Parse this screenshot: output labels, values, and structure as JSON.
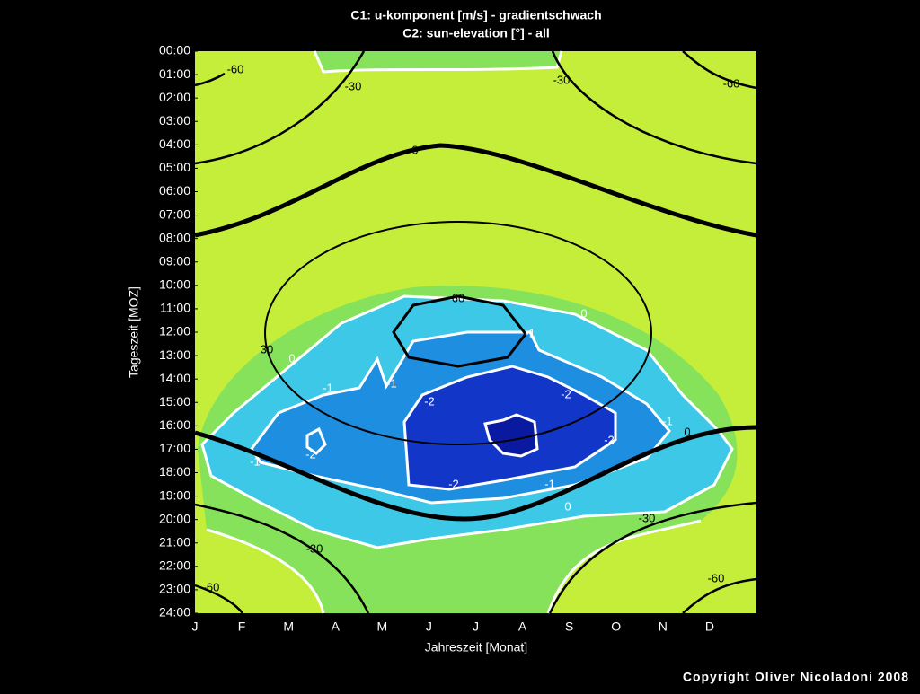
{
  "chart_data": {
    "type": "contour",
    "title": "C1: u-komponent [m/s] - gradientschwach",
    "subtitle": "C2: sun-elevation [°] - all",
    "xlabel": "Jahreszeit [Monat]",
    "ylabel": "Tageszeit [MOZ]",
    "categories": [
      "J",
      "F",
      "M",
      "A",
      "M",
      "J",
      "J",
      "A",
      "S",
      "O",
      "N",
      "D"
    ],
    "ylim": [
      0,
      24
    ],
    "yticks": [
      {
        "value": 0,
        "label": "00:00"
      },
      {
        "value": 1,
        "label": "01:00"
      },
      {
        "value": 2,
        "label": "02:00"
      },
      {
        "value": 3,
        "label": "03:00"
      },
      {
        "value": 4,
        "label": "04:00"
      },
      {
        "value": 5,
        "label": "05:00"
      },
      {
        "value": 6,
        "label": "06:00"
      },
      {
        "value": 7,
        "label": "07:00"
      },
      {
        "value": 8,
        "label": "08:00"
      },
      {
        "value": 9,
        "label": "09:00"
      },
      {
        "value": 10,
        "label": "10:00"
      },
      {
        "value": 11,
        "label": "11:00"
      },
      {
        "value": 12,
        "label": "12:00"
      },
      {
        "value": 13,
        "label": "13:00"
      },
      {
        "value": 14,
        "label": "14:00"
      },
      {
        "value": 15,
        "label": "15:00"
      },
      {
        "value": 16,
        "label": "16:00"
      },
      {
        "value": 17,
        "label": "17:00"
      },
      {
        "value": 18,
        "label": "18:00"
      },
      {
        "value": 19,
        "label": "19:00"
      },
      {
        "value": 20,
        "label": "20:00"
      },
      {
        "value": 21,
        "label": "21:00"
      },
      {
        "value": 22,
        "label": "22:00"
      },
      {
        "value": 23,
        "label": "23:00"
      },
      {
        "value": 24,
        "label": "24:00"
      }
    ],
    "c1_levels": [
      0,
      -1,
      -2
    ],
    "c2_levels": [
      -60,
      -30,
      0,
      30,
      60
    ],
    "copyright": "Copyright Oliver Nicoladoni 2008"
  }
}
